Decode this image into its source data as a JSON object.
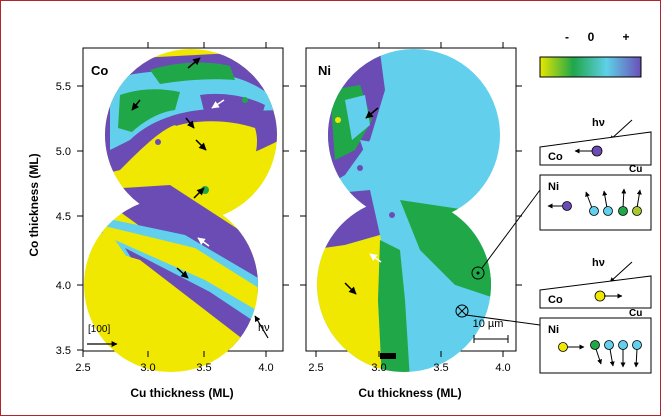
{
  "panels": [
    {
      "label": "Co",
      "x_ticks": [
        "2.5",
        "3.0",
        "3.5",
        "4.0"
      ],
      "y_ticks": [
        "3.5",
        "4.0",
        "4.5",
        "5.0",
        "5.5"
      ],
      "x_axis_label": "Cu thickness  (ML)",
      "y_axis_label": "Co thickness (ML)",
      "direction_label": "[100]",
      "photon_label": "hν"
    },
    {
      "label": "Ni",
      "x_ticks": [
        "2.5",
        "3.0",
        "3.5",
        "4.0"
      ],
      "x_axis_label": "Cu thickness  (ML)",
      "scale_bar": "10 µm"
    }
  ],
  "colorbar": {
    "labels": [
      "-",
      "0",
      "+"
    ],
    "colors": [
      "#e8e800",
      "#1fa64a",
      "#5fd0e8",
      "#6a4fb8"
    ]
  },
  "schematics": [
    {
      "photon": "hν",
      "top_layer": "Co",
      "bottom_layer": "Cu",
      "lower_layer": "Ni"
    },
    {
      "photon": "hν",
      "top_layer": "Co",
      "bottom_layer": "Cu",
      "lower_layer": "Ni"
    }
  ],
  "colors": {
    "frame": "#b0252e",
    "yellow": "#f0e800",
    "green": "#20a848",
    "cyan": "#62d0ec",
    "purple": "#6b4cb5"
  }
}
